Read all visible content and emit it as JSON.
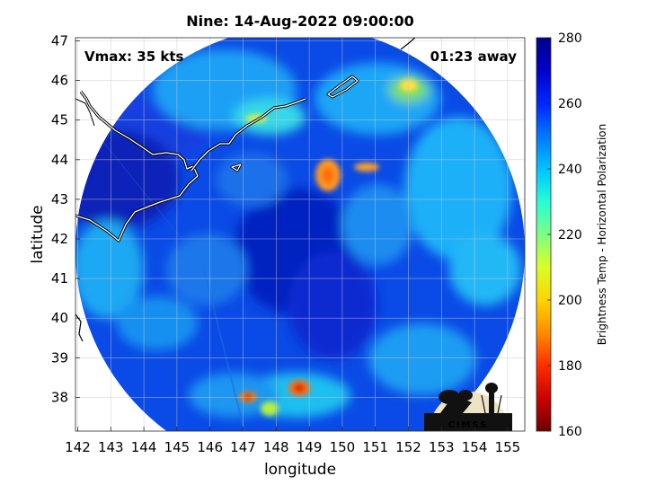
{
  "title": "Nine: 14-Aug-2022 09:00:00",
  "vmax_label": "Vmax: 35 kts",
  "time_label": "01:23 away",
  "xaxis": {
    "label": "longitude",
    "ticks": [
      "142",
      "143",
      "144",
      "145",
      "146",
      "147",
      "148",
      "149",
      "150",
      "151",
      "152",
      "153",
      "154",
      "155"
    ]
  },
  "yaxis": {
    "label": "latitude",
    "ticks": [
      "47",
      "46",
      "45",
      "44",
      "43",
      "42",
      "41",
      "40",
      "39",
      "38"
    ]
  },
  "colorbar": {
    "label": "Brightness Temp - Horizontal Polarization",
    "ticks": [
      "280",
      "260",
      "240",
      "220",
      "200",
      "180",
      "160"
    ],
    "range": [
      160,
      280
    ],
    "colors": [
      "#6b0000",
      "#c80000",
      "#ff3000",
      "#ff8c00",
      "#ffd200",
      "#d8ff28",
      "#7dff82",
      "#28ffd2",
      "#00c8ff",
      "#0078ff",
      "#0028ff",
      "#0000c8",
      "#00008c"
    ]
  },
  "logo": {
    "text": "CIMSS"
  },
  "colors": {
    "background_cold": "#0a46e6",
    "deep_blue": "#0018b4",
    "cyan": "#1ec8ff",
    "coastline": "#ffffff"
  }
}
